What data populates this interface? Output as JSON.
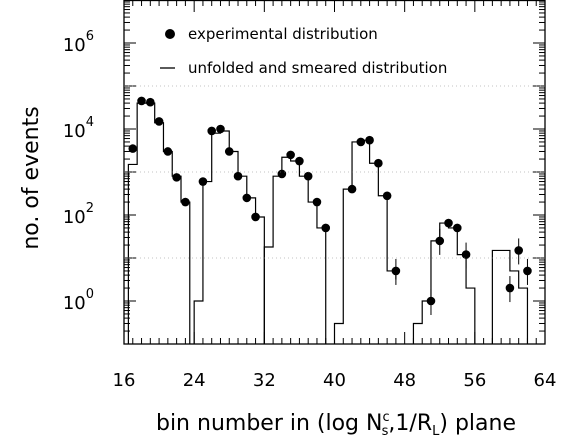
{
  "chart_data": {
    "type": "scatter",
    "title": "",
    "xlabel": "bin number in (log N",
    "xlabel_sup": "c",
    "xlabel_sub1": "s",
    "xlabel_mid": ",1/R",
    "xlabel_sub2": "L",
    "xlabel_tail": ") plane",
    "ylabel": "no. of events",
    "xlim": [
      16,
      64
    ],
    "ylim_log10": [
      -1,
      7
    ],
    "yscale": "log",
    "grid": false,
    "legend_position": "top-left",
    "x_ticks": [
      {
        "value": 16,
        "label": "16"
      },
      {
        "value": 24,
        "label": "24"
      },
      {
        "value": 32,
        "label": "32"
      },
      {
        "value": 40,
        "label": "40"
      },
      {
        "value": 48,
        "label": "48"
      },
      {
        "value": 56,
        "label": "56"
      },
      {
        "value": 64,
        "label": "64"
      }
    ],
    "y_ticks": [
      {
        "exp": 0,
        "base": "10",
        "sup": "0"
      },
      {
        "exp": 2,
        "base": "10",
        "sup": "2"
      },
      {
        "exp": 4,
        "base": "10",
        "sup": "4"
      },
      {
        "exp": 6,
        "base": "10",
        "sup": "6"
      }
    ],
    "series": [
      {
        "name": "experimental distribution",
        "style": "points",
        "x": [
          17,
          18,
          19,
          20,
          21,
          22,
          23,
          25,
          26,
          27,
          28,
          29,
          30,
          31,
          34,
          35,
          36,
          37,
          38,
          39,
          42,
          43,
          44,
          45,
          46,
          47,
          51,
          52,
          53,
          54,
          55,
          60,
          61,
          62
        ],
        "y": [
          3500,
          45000,
          42000,
          15000,
          3000,
          750,
          200,
          600,
          9000,
          10000,
          3000,
          800,
          250,
          90,
          900,
          2500,
          1800,
          800,
          200,
          50,
          400,
          5000,
          5500,
          1600,
          280,
          5,
          1,
          25,
          65,
          50,
          12,
          2,
          15,
          5
        ]
      },
      {
        "name": "unfolded and smeared distribution",
        "style": "step",
        "segments": [
          {
            "x0": 16.5,
            "values": [
              1500,
              40000,
              40000,
              14000,
              3000,
              800,
              200
            ],
            "right_base_log10": -1
          },
          {
            "x0": 24,
            "values": [
              1,
              600,
              8000,
              9000,
              3000,
              800,
              250,
              90
            ],
            "right_base_log10": -1
          },
          {
            "x0": 32,
            "values": [
              18,
              800,
              2200,
              1800,
              800,
              200,
              50
            ],
            "right_base_log10": -1
          },
          {
            "x0": 40,
            "values": [
              0.3,
              400,
              5000,
              5500,
              1600,
              280,
              5
            ],
            "right_base_log10": 0.5
          },
          {
            "x0": 49,
            "values": [
              0.3,
              1,
              25,
              65,
              50,
              12,
              2
            ],
            "right_base_log10": -1
          },
          {
            "x0": 58,
            "values": [
              15,
              15,
              5,
              2
            ],
            "right_base_log10": -1
          }
        ]
      }
    ]
  }
}
